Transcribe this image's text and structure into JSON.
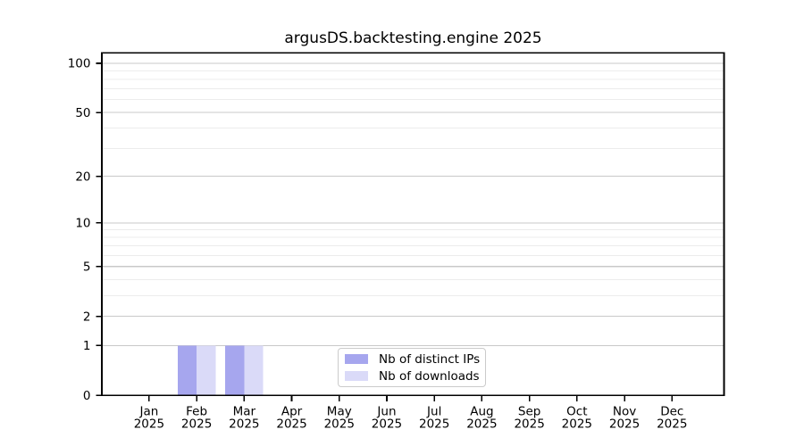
{
  "chart_data": {
    "type": "bar",
    "title": "argusDS.backtesting.engine 2025",
    "categories": [
      {
        "month": "Jan",
        "year": "2025"
      },
      {
        "month": "Feb",
        "year": "2025"
      },
      {
        "month": "Mar",
        "year": "2025"
      },
      {
        "month": "Apr",
        "year": "2025"
      },
      {
        "month": "May",
        "year": "2025"
      },
      {
        "month": "Jun",
        "year": "2025"
      },
      {
        "month": "Jul",
        "year": "2025"
      },
      {
        "month": "Aug",
        "year": "2025"
      },
      {
        "month": "Sep",
        "year": "2025"
      },
      {
        "month": "Oct",
        "year": "2025"
      },
      {
        "month": "Nov",
        "year": "2025"
      },
      {
        "month": "Dec",
        "year": "2025"
      }
    ],
    "series": [
      {
        "name": "Nb of distinct IPs",
        "color": "#a6a6ee",
        "values": [
          0,
          1,
          1,
          0,
          0,
          0,
          0,
          0,
          0,
          0,
          0,
          0
        ]
      },
      {
        "name": "Nb of downloads",
        "color": "#dadaf8",
        "values": [
          0,
          1,
          1,
          0,
          0,
          0,
          0,
          0,
          0,
          0,
          0,
          0
        ]
      }
    ],
    "yscale": "log1p",
    "ylim": [
      0,
      116
    ],
    "y_major_ticks": [
      100,
      50,
      20,
      10,
      5,
      2,
      1,
      0
    ],
    "y_minor_gridlines": [
      90,
      80,
      70,
      60,
      40,
      30,
      9,
      8,
      7,
      6,
      4,
      3
    ],
    "grid": true,
    "legend_position": "lower center"
  },
  "colors": {
    "spine": "#000000",
    "major_grid": "#c9c9c9",
    "minor_grid": "#ececec",
    "tick": "#000000",
    "text": "#000000",
    "legend_border": "#cbcbcb"
  }
}
